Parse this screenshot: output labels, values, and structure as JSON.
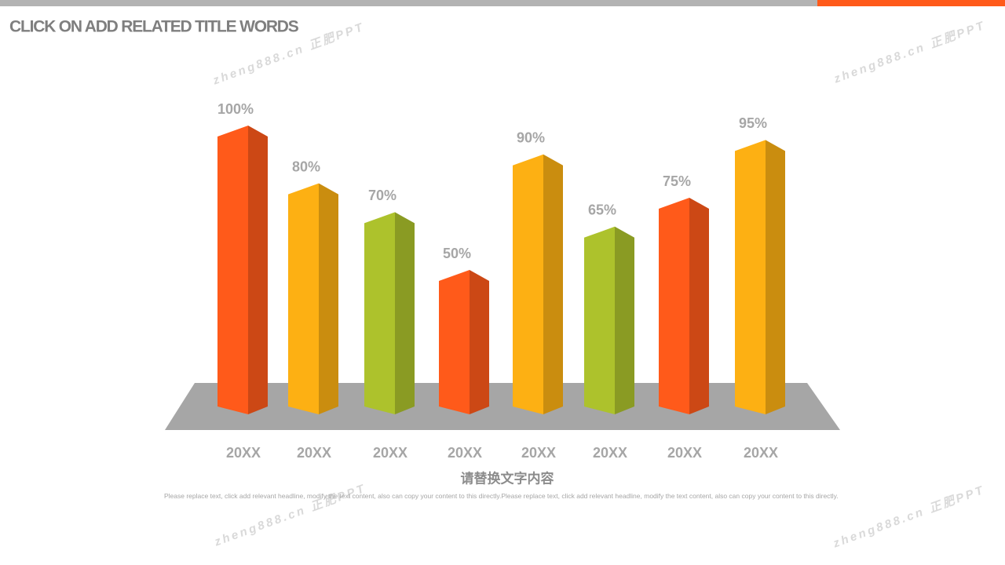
{
  "chart_data": {
    "type": "bar3d",
    "title": "CLICK ON ADD RELATED TITLE WORDS",
    "subtitle": "请替换文字内容",
    "body": "Please replace text, click add relevant headline, modify the text content, also can copy your content to this directly.Please replace text, click add relevant headline, modify the text content, also can copy your content to this directly.",
    "watermark": "zheng888.cn 正肥PPT",
    "categories": [
      "20XX",
      "20XX",
      "20XX",
      "20XX",
      "20XX",
      "20XX",
      "20XX",
      "20XX"
    ],
    "values": [
      100,
      80,
      70,
      50,
      90,
      65,
      75,
      95
    ],
    "value_labels": [
      "100%",
      "80%",
      "70%",
      "50%",
      "90%",
      "65%",
      "75%",
      "95%"
    ],
    "colors": [
      "#ff5a1a",
      "#fdb013",
      "#adc22c",
      "#ff5a1a",
      "#fdb013",
      "#adc22c",
      "#ff5a1a",
      "#fdb013"
    ]
  }
}
